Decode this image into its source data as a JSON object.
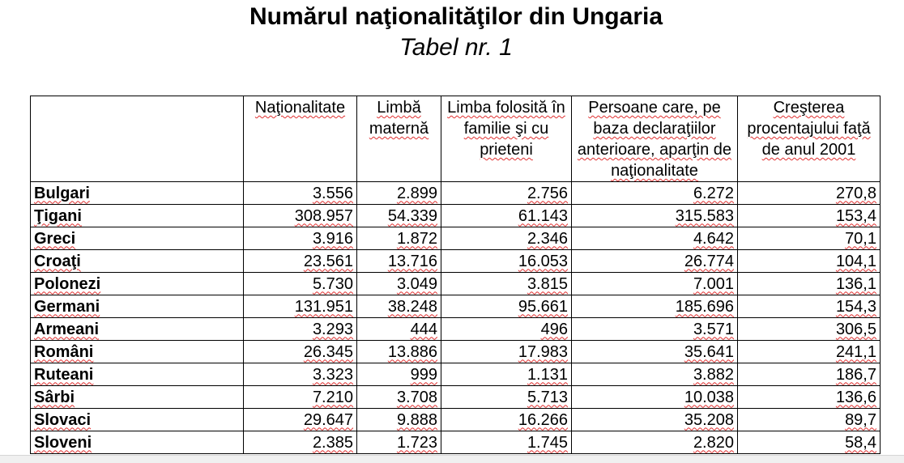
{
  "document": {
    "title": "Numărul naţionalităţilor din Ungaria",
    "subtitle": "Tabel nr. 1"
  },
  "table": {
    "headers": [
      "",
      "Naţionalitate",
      "Limbă maternă",
      "Limba folosită în familie şi cu prieteni",
      "Persoane care, pe baza declaraţiilor anterioare, aparţin de naţionalitate",
      "Creşterea procentajului faţă de anul 2001"
    ],
    "rows": [
      {
        "name": "Bulgari",
        "v": [
          "3.556",
          "2.899",
          "2.756",
          "6.272",
          "270,8"
        ]
      },
      {
        "name": "Ţigani",
        "v": [
          "308.957",
          "54.339",
          "61.143",
          "315.583",
          "153,4"
        ]
      },
      {
        "name": "Greci",
        "v": [
          "3.916",
          "1.872",
          "2.346",
          "4.642",
          "70,1"
        ]
      },
      {
        "name": "Croaţi",
        "v": [
          "23.561",
          "13.716",
          "16.053",
          "26.774",
          "104,1"
        ]
      },
      {
        "name": "Polonezi",
        "v": [
          "5.730",
          "3.049",
          "3.815",
          "7.001",
          "136,1"
        ]
      },
      {
        "name": "Germani",
        "v": [
          "131.951",
          "38.248",
          "95.661",
          "185.696",
          "154,3"
        ]
      },
      {
        "name": "Armeani",
        "v": [
          "3.293",
          "444",
          "496",
          "3.571",
          "306,5"
        ]
      },
      {
        "name": "Români",
        "v": [
          "26.345",
          "13.886",
          "17.983",
          "35.641",
          "241,1"
        ]
      },
      {
        "name": "Ruteani",
        "v": [
          "3.323",
          "999",
          "1.131",
          "3.882",
          "186,7"
        ]
      },
      {
        "name": "Sârbi",
        "v": [
          "7.210",
          "3.708",
          "5.713",
          "10.038",
          "136,6"
        ]
      },
      {
        "name": "Slovaci",
        "v": [
          "29.647",
          "9.888",
          "16.266",
          "35.208",
          "89,7"
        ]
      },
      {
        "name": "Sloveni",
        "v": [
          "2.385",
          "1.723",
          "1.745",
          "2.820",
          "58,4"
        ]
      }
    ]
  }
}
